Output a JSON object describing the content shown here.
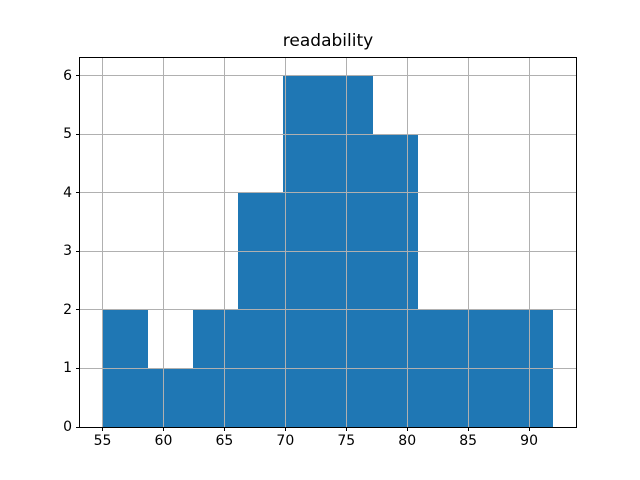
{
  "chart_data": {
    "type": "bar",
    "subtype": "histogram",
    "title": "readability",
    "xlabel": "",
    "ylabel": "",
    "bin_edges": [
      55,
      58.7,
      62.4,
      66.1,
      69.8,
      73.5,
      77.2,
      80.9,
      84.6,
      88.3,
      92
    ],
    "values": [
      2,
      1,
      2,
      4,
      6,
      6,
      5,
      2,
      2,
      2
    ],
    "xticks": [
      55,
      60,
      65,
      70,
      75,
      80,
      85,
      90
    ],
    "yticks": [
      0,
      1,
      2,
      3,
      4,
      5,
      6
    ],
    "xlim": [
      53.15,
      93.85
    ],
    "ylim": [
      0,
      6.3
    ],
    "bar_color": "#1f77b4",
    "grid": true,
    "grid_above_bars": true,
    "grid_color": "#b0b0b0",
    "spine_color": "#000000",
    "background_color": "#ffffff"
  }
}
